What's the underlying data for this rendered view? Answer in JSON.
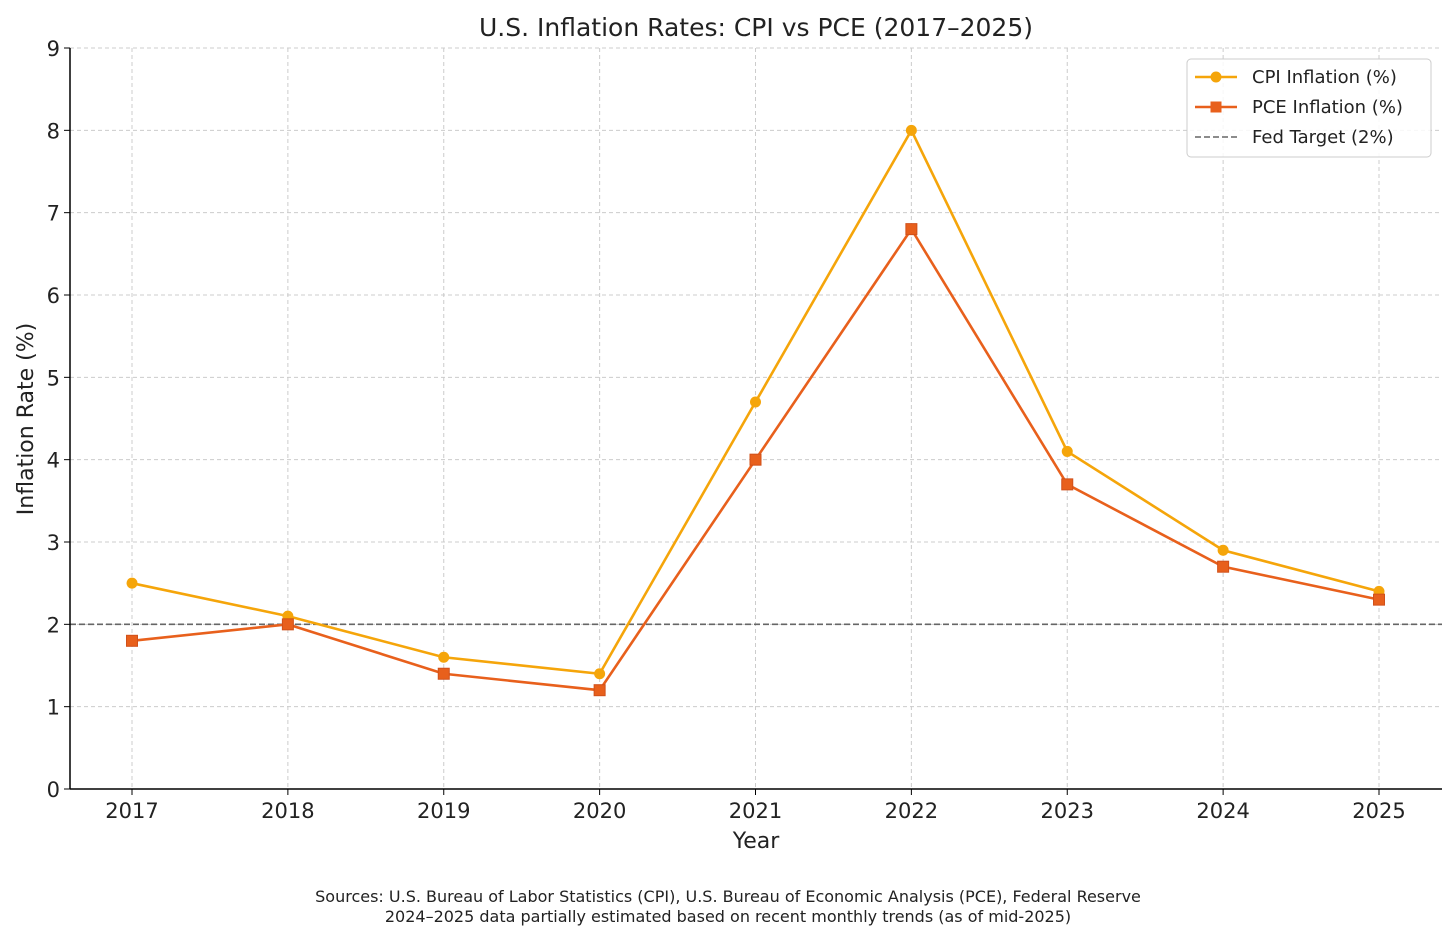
{
  "chart_data": {
    "type": "line",
    "title": "U.S. Inflation Rates: CPI vs PCE (2017–2025)",
    "xlabel": "Year",
    "ylabel": "Inflation Rate (%)",
    "x": [
      "2017",
      "2018",
      "2019",
      "2020",
      "2021",
      "2022",
      "2023",
      "2024",
      "2025"
    ],
    "ylim": [
      0,
      9
    ],
    "yticks": [
      "0",
      "1",
      "2",
      "3",
      "4",
      "5",
      "6",
      "7",
      "8",
      "9"
    ],
    "grid": true,
    "legend_position": "top-right",
    "series": [
      {
        "name": "CPI Inflation (%)",
        "color": "#f5a50a",
        "marker": "circle",
        "values": [
          2.5,
          2.1,
          1.6,
          1.4,
          4.7,
          8.0,
          4.1,
          2.9,
          2.4
        ]
      },
      {
        "name": "PCE Inflation (%)",
        "color": "#e8601c",
        "marker": "square",
        "values": [
          1.8,
          2.0,
          1.4,
          1.2,
          4.0,
          6.8,
          3.7,
          2.7,
          2.3
        ]
      }
    ],
    "reference_line": {
      "name": "Fed Target (2%)",
      "value": 2,
      "color": "#666666",
      "style": "dashed"
    },
    "footnote": [
      "Sources: U.S. Bureau of Labor Statistics (CPI), U.S. Bureau of Economic Analysis (PCE), Federal Reserve",
      "2024–2025 data partially estimated based on recent monthly trends (as of mid-2025)"
    ]
  }
}
